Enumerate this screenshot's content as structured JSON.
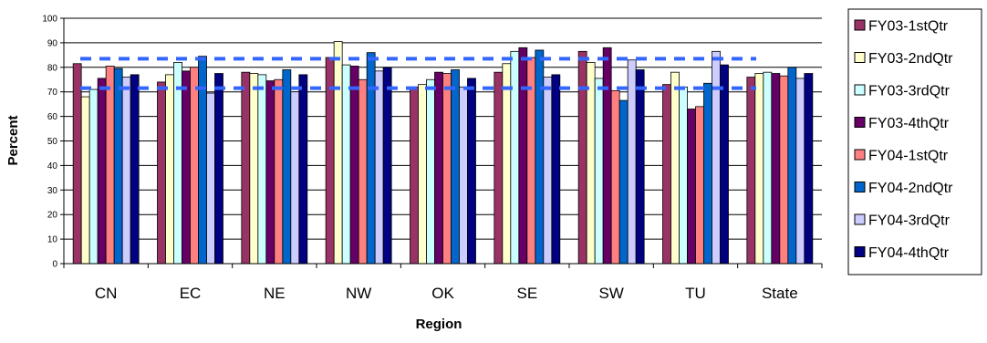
{
  "chart_data": {
    "type": "bar",
    "title": "",
    "xlabel": "Region",
    "ylabel": "Percent",
    "ylim": [
      0,
      100
    ],
    "yticks": [
      0,
      10,
      20,
      30,
      40,
      50,
      60,
      70,
      80,
      90,
      100
    ],
    "grid": "horizontal",
    "legend_position": "right",
    "categories": [
      "CN",
      "EC",
      "NE",
      "NW",
      "OK",
      "SE",
      "SW",
      "TU",
      "State"
    ],
    "series": [
      {
        "name": "FY03-1stQtr",
        "color": "#993366",
        "values": [
          81.5,
          74,
          78,
          84,
          72,
          78,
          86.5,
          73,
          76
        ]
      },
      {
        "name": "FY03-2ndQtr",
        "color": "#FFFFCC",
        "values": [
          68,
          77,
          77.5,
          90.5,
          73,
          81.5,
          82,
          78,
          77.5
        ]
      },
      {
        "name": "FY03-3rdQtr",
        "color": "#CCFFFF",
        "values": [
          71,
          82,
          77,
          81,
          75,
          86.5,
          75.5,
          72,
          78
        ]
      },
      {
        "name": "FY03-4thQtr",
        "color": "#660066",
        "values": [
          75.5,
          78.5,
          74.5,
          80.5,
          78,
          88,
          88,
          63,
          77.5
        ]
      },
      {
        "name": "FY04-1stQtr",
        "color": "#FF8080",
        "values": [
          80.5,
          80,
          75,
          75,
          77.5,
          84,
          70.5,
          64,
          76.5
        ]
      },
      {
        "name": "FY04-2ndQtr",
        "color": "#0066CC",
        "values": [
          79.5,
          84.5,
          79,
          86,
          79,
          87,
          66.5,
          73.5,
          80
        ]
      },
      {
        "name": "FY04-3rdQtr",
        "color": "#CCCCFF",
        "values": [
          76,
          69.5,
          70,
          78.5,
          72,
          76,
          83,
          86.5,
          75.5
        ]
      },
      {
        "name": "FY04-4thQtr",
        "color": "#000080",
        "values": [
          77,
          77.5,
          77,
          80,
          75.5,
          77,
          79,
          81,
          77.5
        ]
      }
    ],
    "reference_lines": [
      {
        "value": 83.5,
        "color": "#3366FF",
        "style": "dashed"
      },
      {
        "value": 71.5,
        "color": "#3366FF",
        "style": "dashed"
      }
    ]
  }
}
